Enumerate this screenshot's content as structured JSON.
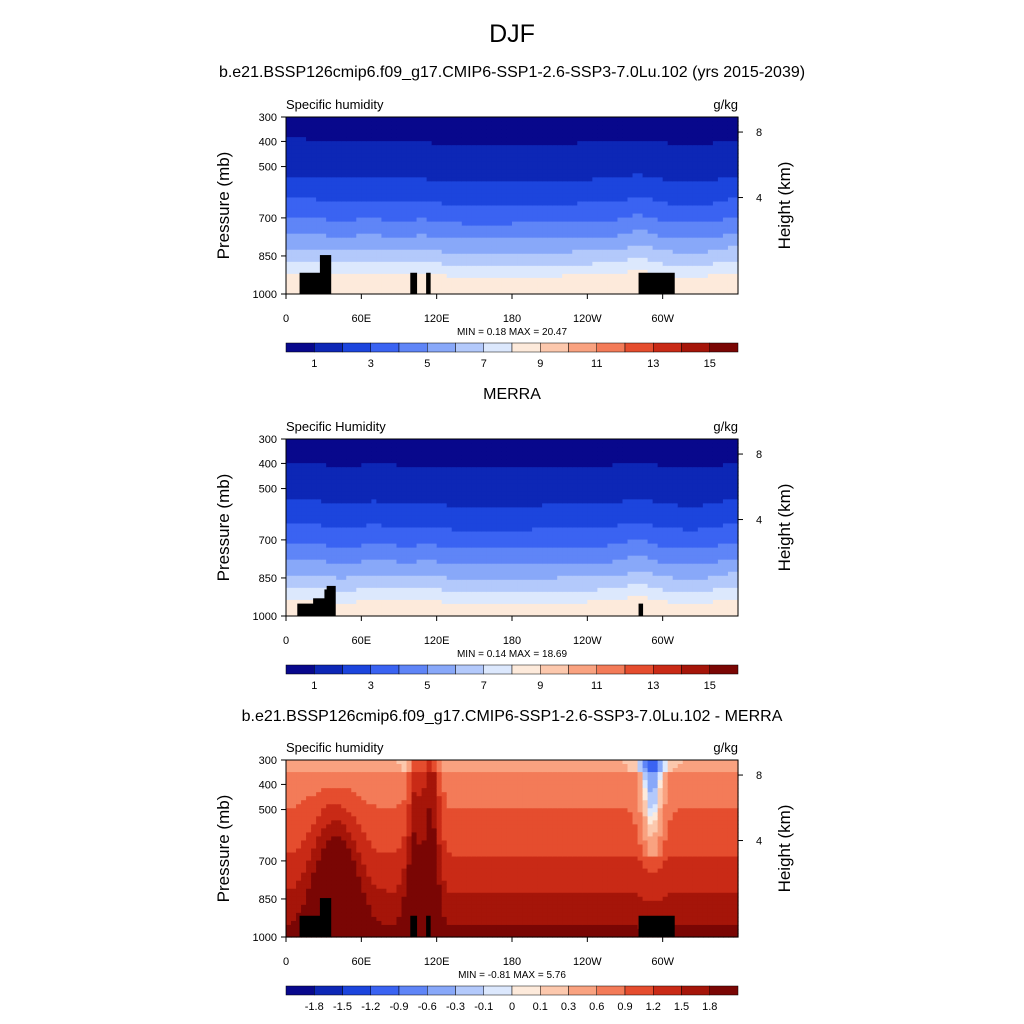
{
  "figure": {
    "title": "DJF",
    "model_title": "b.e21.BSSP126cmip6.f09_g17.CMIP6-SSP1-2.6-SSP3-7.0Lu.102 (yrs 2015-2039)",
    "obs_title": "MERRA",
    "diff_title": "b.e21.BSSP126cmip6.f09_g17.CMIP6-SSP1-2.6-SSP3-7.0Lu.102 - MERRA"
  },
  "chart_data": [
    {
      "type": "heatmap",
      "panel": "model",
      "left_label": "Specific humidity",
      "right_label": "g/kg",
      "ylabel": "Pressure (mb)",
      "ylabel_right": "Height (km)",
      "y_ticks": [
        "300",
        "400",
        "500",
        "700",
        "850",
        "1000"
      ],
      "y_right_ticks": [
        "8",
        "4"
      ],
      "x_ticks": [
        "0",
        "60E",
        "120E",
        "180",
        "120W",
        "60W"
      ],
      "stats": "MIN =   0.18  MAX =  20.47",
      "levels": [
        "1",
        "3",
        "5",
        "7",
        "9",
        "11",
        "13",
        "15"
      ],
      "colors": [
        "#08088c",
        "#0d27b6",
        "#1c45dd",
        "#3a63f2",
        "#5f85f7",
        "#88a8f9",
        "#b3c9fb",
        "#dce8fd",
        "#fdeadb",
        "#fcc8ad",
        "#f9a280",
        "#f37b58",
        "#e54d2e",
        "#c92a16",
        "#a51509",
        "#7a0604"
      ]
    },
    {
      "type": "heatmap",
      "panel": "obs",
      "left_label": "Specific Humidity",
      "right_label": "g/kg",
      "ylabel": "Pressure (mb)",
      "ylabel_right": "Height (km)",
      "y_ticks": [
        "300",
        "400",
        "500",
        "700",
        "850",
        "1000"
      ],
      "y_right_ticks": [
        "8",
        "4"
      ],
      "x_ticks": [
        "0",
        "60E",
        "120E",
        "180",
        "120W",
        "60W"
      ],
      "stats": "MIN =   0.14  MAX =  18.69",
      "levels": [
        "1",
        "3",
        "5",
        "7",
        "9",
        "11",
        "13",
        "15"
      ],
      "colors": [
        "#08088c",
        "#0d27b6",
        "#1c45dd",
        "#3a63f2",
        "#5f85f7",
        "#88a8f9",
        "#b3c9fb",
        "#dce8fd",
        "#fdeadb",
        "#fcc8ad",
        "#f9a280",
        "#f37b58",
        "#e54d2e",
        "#c92a16",
        "#a51509",
        "#7a0604"
      ]
    },
    {
      "type": "heatmap",
      "panel": "diff",
      "left_label": "Specific humidity",
      "right_label": "g/kg",
      "ylabel": "Pressure (mb)",
      "ylabel_right": "Height (km)",
      "y_ticks": [
        "300",
        "400",
        "500",
        "700",
        "850",
        "1000"
      ],
      "y_right_ticks": [
        "8",
        "4"
      ],
      "x_ticks": [
        "0",
        "60E",
        "120E",
        "180",
        "120W",
        "60W"
      ],
      "stats": "MIN =  -0.81  MAX =   5.76",
      "levels": [
        "-1.8",
        "-1.5",
        "-1.2",
        "-0.9",
        "-0.6",
        "-0.3",
        "-0.1",
        "0",
        "0.1",
        "0.3",
        "0.6",
        "0.9",
        "1.2",
        "1.5",
        "1.8"
      ],
      "colors": [
        "#08088c",
        "#0d27b6",
        "#1c45dd",
        "#3a63f2",
        "#5f85f7",
        "#88a8f9",
        "#b3c9fb",
        "#dce8fd",
        "#fdeadb",
        "#fcc8ad",
        "#f9a280",
        "#f37b58",
        "#e54d2e",
        "#c92a16",
        "#a51509",
        "#7a0604"
      ]
    }
  ]
}
